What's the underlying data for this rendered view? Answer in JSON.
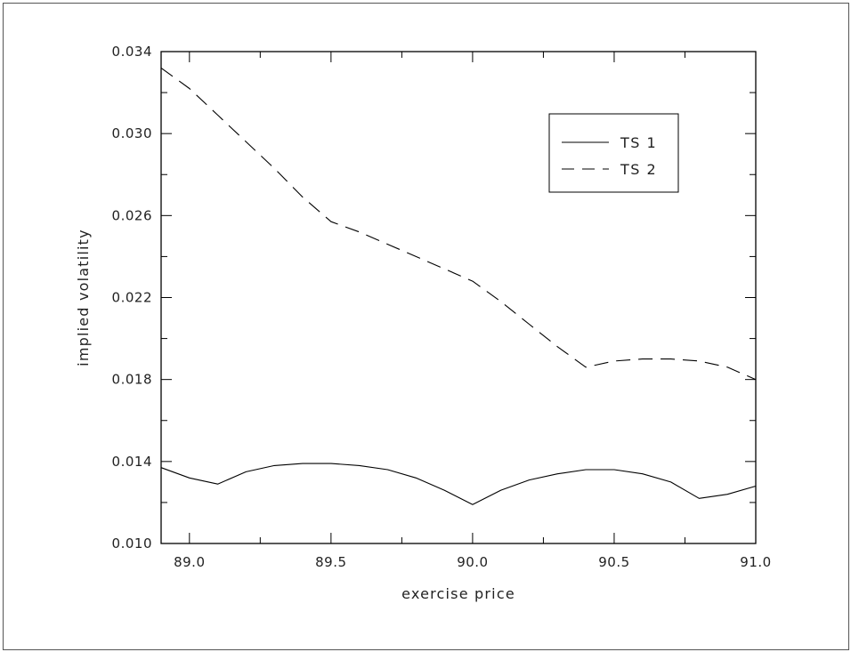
{
  "chart_data": {
    "type": "line",
    "title": "",
    "xlabel": "exercise price",
    "ylabel": "implied volatility",
    "xlim": [
      88.9,
      91.0
    ],
    "ylim": [
      0.01,
      0.034
    ],
    "xticks": [
      89.0,
      89.5,
      90.0,
      90.5,
      91.0
    ],
    "xtick_labels": [
      "89.0",
      "89.5",
      "90.0",
      "90.5",
      "91.0"
    ],
    "yticks": [
      0.01,
      0.014,
      0.018,
      0.022,
      0.026,
      0.03,
      0.034
    ],
    "ytick_labels": [
      "0.010",
      "0.014",
      "0.018",
      "0.022",
      "0.026",
      "0.030",
      "0.034"
    ],
    "grid": false,
    "legend_position": "top-right",
    "series": [
      {
        "name": "TS 1",
        "style": "solid",
        "color": "#000000",
        "x": [
          88.9,
          89.0,
          89.1,
          89.2,
          89.3,
          89.4,
          89.5,
          89.6,
          89.7,
          89.8,
          89.9,
          90.0,
          90.1,
          90.2,
          90.3,
          90.4,
          90.5,
          90.6,
          90.7,
          90.8,
          90.9,
          91.0
        ],
        "y": [
          0.0137,
          0.0132,
          0.0129,
          0.0135,
          0.0138,
          0.0139,
          0.0139,
          0.0138,
          0.0136,
          0.0132,
          0.0126,
          0.0119,
          0.0126,
          0.0131,
          0.0134,
          0.0136,
          0.0136,
          0.0134,
          0.013,
          0.0122,
          0.0124,
          0.0128
        ]
      },
      {
        "name": "TS 2",
        "style": "dashed",
        "color": "#000000",
        "x": [
          88.9,
          89.0,
          89.1,
          89.2,
          89.3,
          89.4,
          89.5,
          89.6,
          89.7,
          89.8,
          89.9,
          90.0,
          90.1,
          90.2,
          90.3,
          90.4,
          90.5,
          90.6,
          90.7,
          90.8,
          90.9,
          91.0
        ],
        "y": [
          0.0332,
          0.0322,
          0.0309,
          0.0296,
          0.0283,
          0.0269,
          0.0257,
          0.0252,
          0.0246,
          0.024,
          0.0234,
          0.0228,
          0.0218,
          0.0207,
          0.0196,
          0.0186,
          0.0189,
          0.019,
          0.019,
          0.0189,
          0.0186,
          0.018
        ]
      }
    ]
  }
}
